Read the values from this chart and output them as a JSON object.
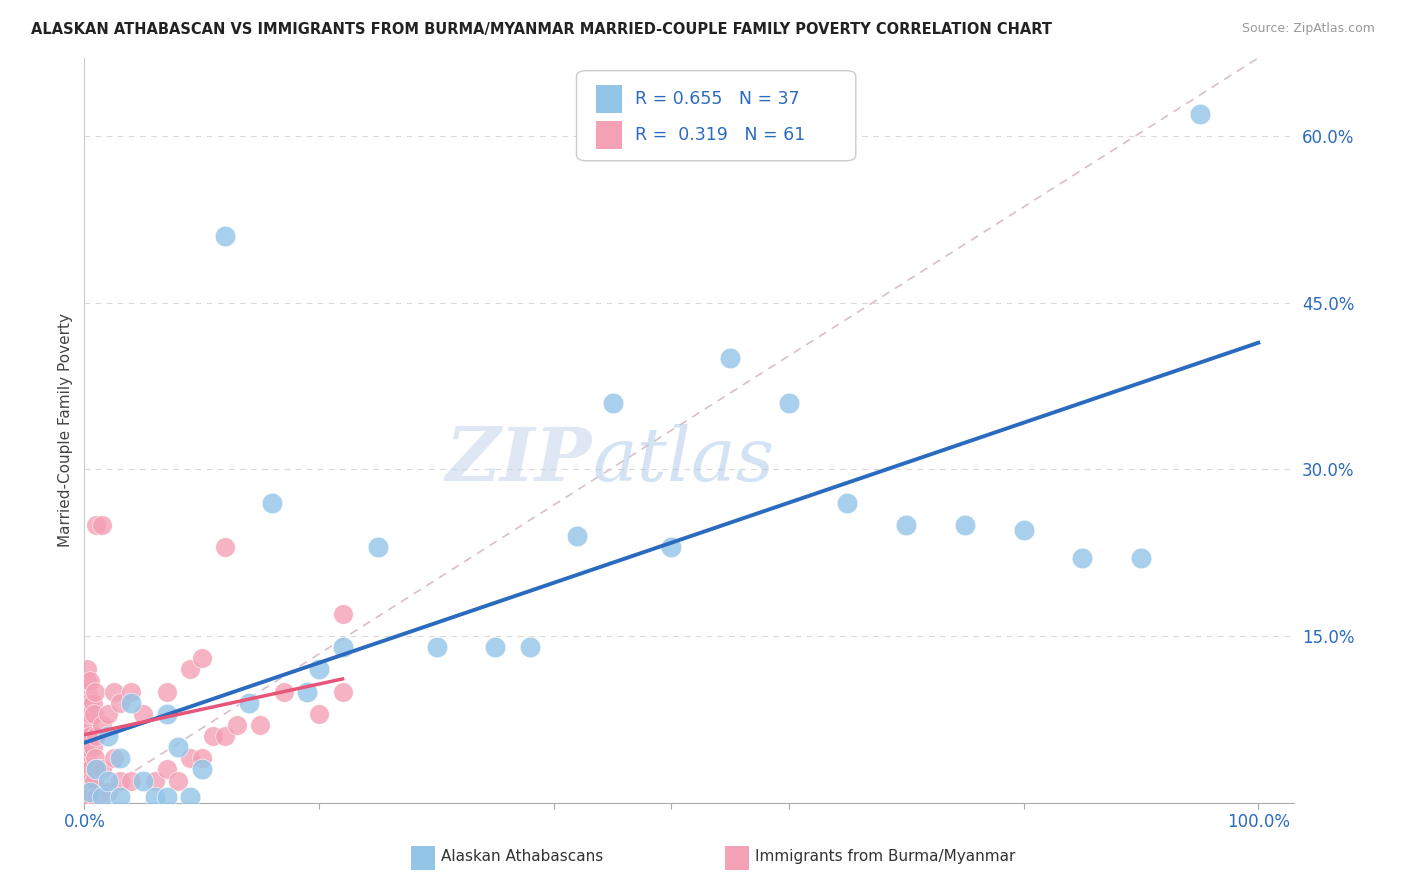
{
  "title": "ALASKAN ATHABASCAN VS IMMIGRANTS FROM BURMA/MYANMAR MARRIED-COUPLE FAMILY POVERTY CORRELATION CHART",
  "source": "Source: ZipAtlas.com",
  "ylabel": "Married-Couple Family Poverty",
  "yticks": [
    0.0,
    0.15,
    0.3,
    0.45,
    0.6
  ],
  "ytick_labels": [
    "",
    "15.0%",
    "30.0%",
    "45.0%",
    "60.0%"
  ],
  "legend_label1": "Alaskan Athabascans",
  "legend_label2": "Immigrants from Burma/Myanmar",
  "R1": "0.655",
  "N1": "37",
  "R2": "0.319",
  "N2": "61",
  "blue_color": "#92c5e8",
  "pink_color": "#f4a0b5",
  "blue_line_color": "#2b6bbf",
  "pink_line_color": "#e8557a",
  "text_blue": "#2b6bbf",
  "watermark_color": "#d5e8f5",
  "grid_color": "#d8d8d8",
  "ref_line_color": "#d8c0c8",
  "blue_dots_x": [
    0.005,
    0.01,
    0.015,
    0.02,
    0.02,
    0.03,
    0.03,
    0.04,
    0.05,
    0.06,
    0.07,
    0.07,
    0.08,
    0.09,
    0.1,
    0.12,
    0.14,
    0.16,
    0.19,
    0.2,
    0.22,
    0.25,
    0.3,
    0.35,
    0.38,
    0.42,
    0.45,
    0.5,
    0.55,
    0.6,
    0.65,
    0.7,
    0.75,
    0.8,
    0.85,
    0.9,
    0.95
  ],
  "blue_dots_y": [
    0.01,
    0.03,
    0.005,
    0.06,
    0.02,
    0.005,
    0.04,
    0.09,
    0.02,
    0.005,
    0.005,
    0.08,
    0.05,
    0.005,
    0.03,
    0.51,
    0.09,
    0.27,
    0.1,
    0.12,
    0.14,
    0.23,
    0.14,
    0.14,
    0.14,
    0.24,
    0.36,
    0.23,
    0.4,
    0.36,
    0.27,
    0.25,
    0.25,
    0.245,
    0.22,
    0.22,
    0.62
  ],
  "pink_dots_x": [
    0.002,
    0.002,
    0.002,
    0.002,
    0.002,
    0.002,
    0.002,
    0.002,
    0.002,
    0.002,
    0.002,
    0.002,
    0.003,
    0.003,
    0.004,
    0.004,
    0.005,
    0.005,
    0.005,
    0.005,
    0.005,
    0.006,
    0.007,
    0.007,
    0.008,
    0.008,
    0.009,
    0.009,
    0.01,
    0.01,
    0.01,
    0.01,
    0.015,
    0.015,
    0.015,
    0.02,
    0.02,
    0.025,
    0.025,
    0.03,
    0.03,
    0.04,
    0.04,
    0.05,
    0.06,
    0.07,
    0.07,
    0.08,
    0.09,
    0.09,
    0.1,
    0.1,
    0.11,
    0.12,
    0.12,
    0.13,
    0.15,
    0.17,
    0.2,
    0.22,
    0.22
  ],
  "pink_dots_y": [
    0.01,
    0.02,
    0.03,
    0.04,
    0.05,
    0.06,
    0.07,
    0.08,
    0.09,
    0.1,
    0.11,
    0.12,
    0.005,
    0.07,
    0.02,
    0.09,
    0.005,
    0.03,
    0.06,
    0.08,
    0.11,
    0.02,
    0.05,
    0.09,
    0.02,
    0.08,
    0.04,
    0.1,
    0.005,
    0.03,
    0.06,
    0.25,
    0.03,
    0.07,
    0.25,
    0.01,
    0.08,
    0.04,
    0.1,
    0.02,
    0.09,
    0.02,
    0.1,
    0.08,
    0.02,
    0.03,
    0.1,
    0.02,
    0.04,
    0.12,
    0.04,
    0.13,
    0.06,
    0.06,
    0.23,
    0.07,
    0.07,
    0.1,
    0.08,
    0.1,
    0.17
  ]
}
